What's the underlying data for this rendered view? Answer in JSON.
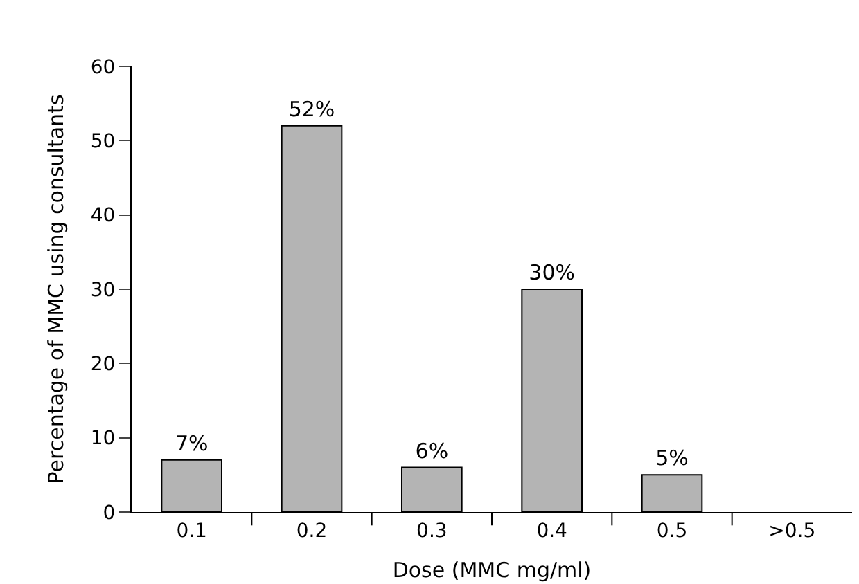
{
  "chart_data": {
    "type": "bar",
    "xlabel": "Dose (MMC mg/ml)",
    "ylabel": "Percentage of MMC using consultants",
    "categories": [
      "0.1",
      "0.2",
      "0.3",
      "0.4",
      "0.5",
      ">0.5"
    ],
    "values": [
      7,
      52,
      6,
      30,
      5,
      null
    ],
    "value_labels": [
      "7%",
      "52%",
      "6%",
      "30%",
      "5%",
      null
    ],
    "color": "#b4b4b4",
    "ylim": [
      0,
      60
    ],
    "yticks": [
      0,
      10,
      20,
      30,
      40,
      50,
      60
    ]
  }
}
